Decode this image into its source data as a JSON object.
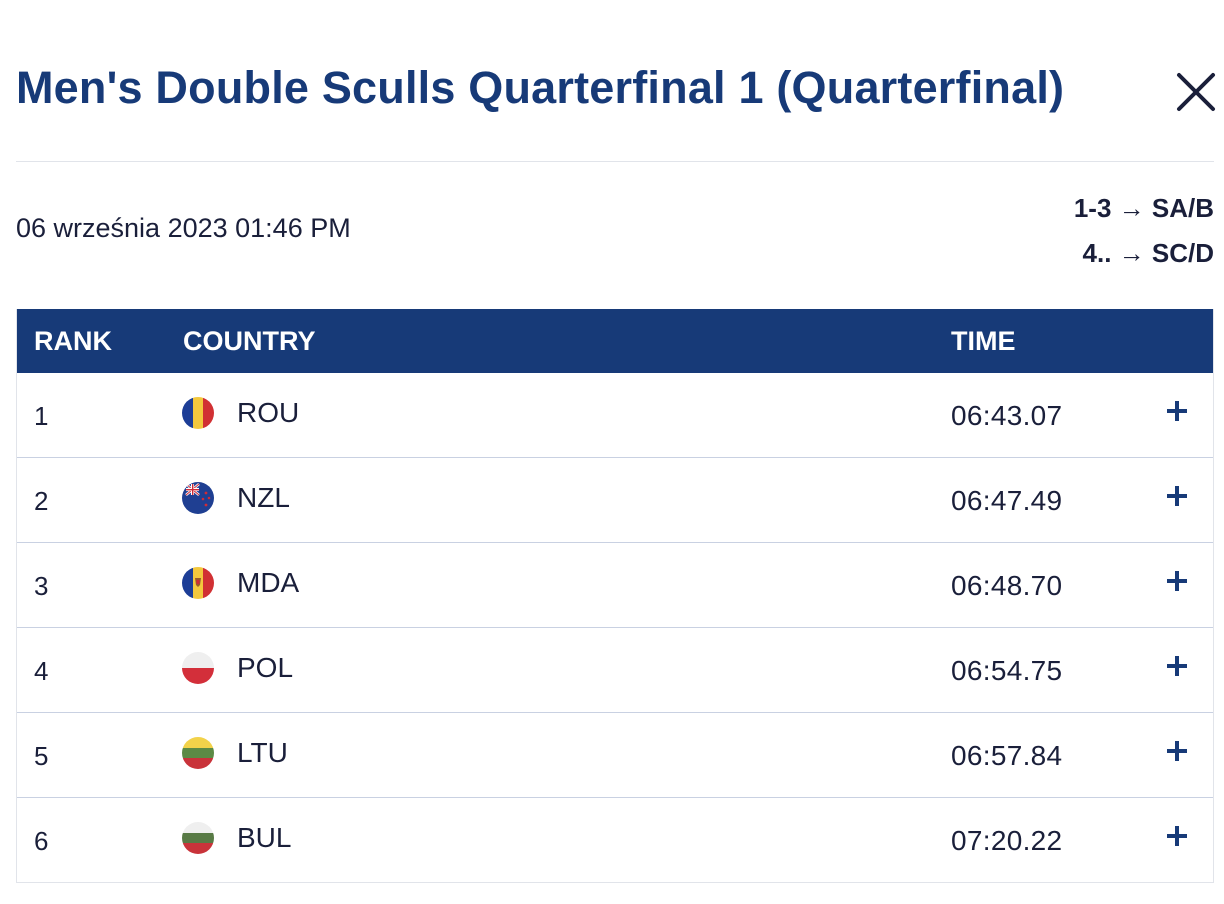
{
  "header": {
    "title": "Men's Double Sculls Quarterfinal 1 (Quarterfinal)",
    "close_icon": "close-icon"
  },
  "meta": {
    "date": "06 września 2023 01:46 PM",
    "progression": [
      "1-3 → SA/B",
      "4.. → SC/D"
    ]
  },
  "table": {
    "headers": {
      "rank": "RANK",
      "country": "COUNTRY",
      "time": "TIME"
    },
    "rows": [
      {
        "rank": "1",
        "country": "ROU",
        "time": "06:43.07",
        "flag": "romania-flag-icon"
      },
      {
        "rank": "2",
        "country": "NZL",
        "time": "06:47.49",
        "flag": "new-zealand-flag-icon"
      },
      {
        "rank": "3",
        "country": "MDA",
        "time": "06:48.70",
        "flag": "moldova-flag-icon"
      },
      {
        "rank": "4",
        "country": "POL",
        "time": "06:54.75",
        "flag": "poland-flag-icon"
      },
      {
        "rank": "5",
        "country": "LTU",
        "time": "06:57.84",
        "flag": "lithuania-flag-icon"
      },
      {
        "rank": "6",
        "country": "BUL",
        "time": "07:20.22",
        "flag": "bulgaria-flag-icon"
      }
    ]
  },
  "colors": {
    "title": "#173a78",
    "header_bg": "#173a78",
    "text": "#1a1f3a"
  }
}
